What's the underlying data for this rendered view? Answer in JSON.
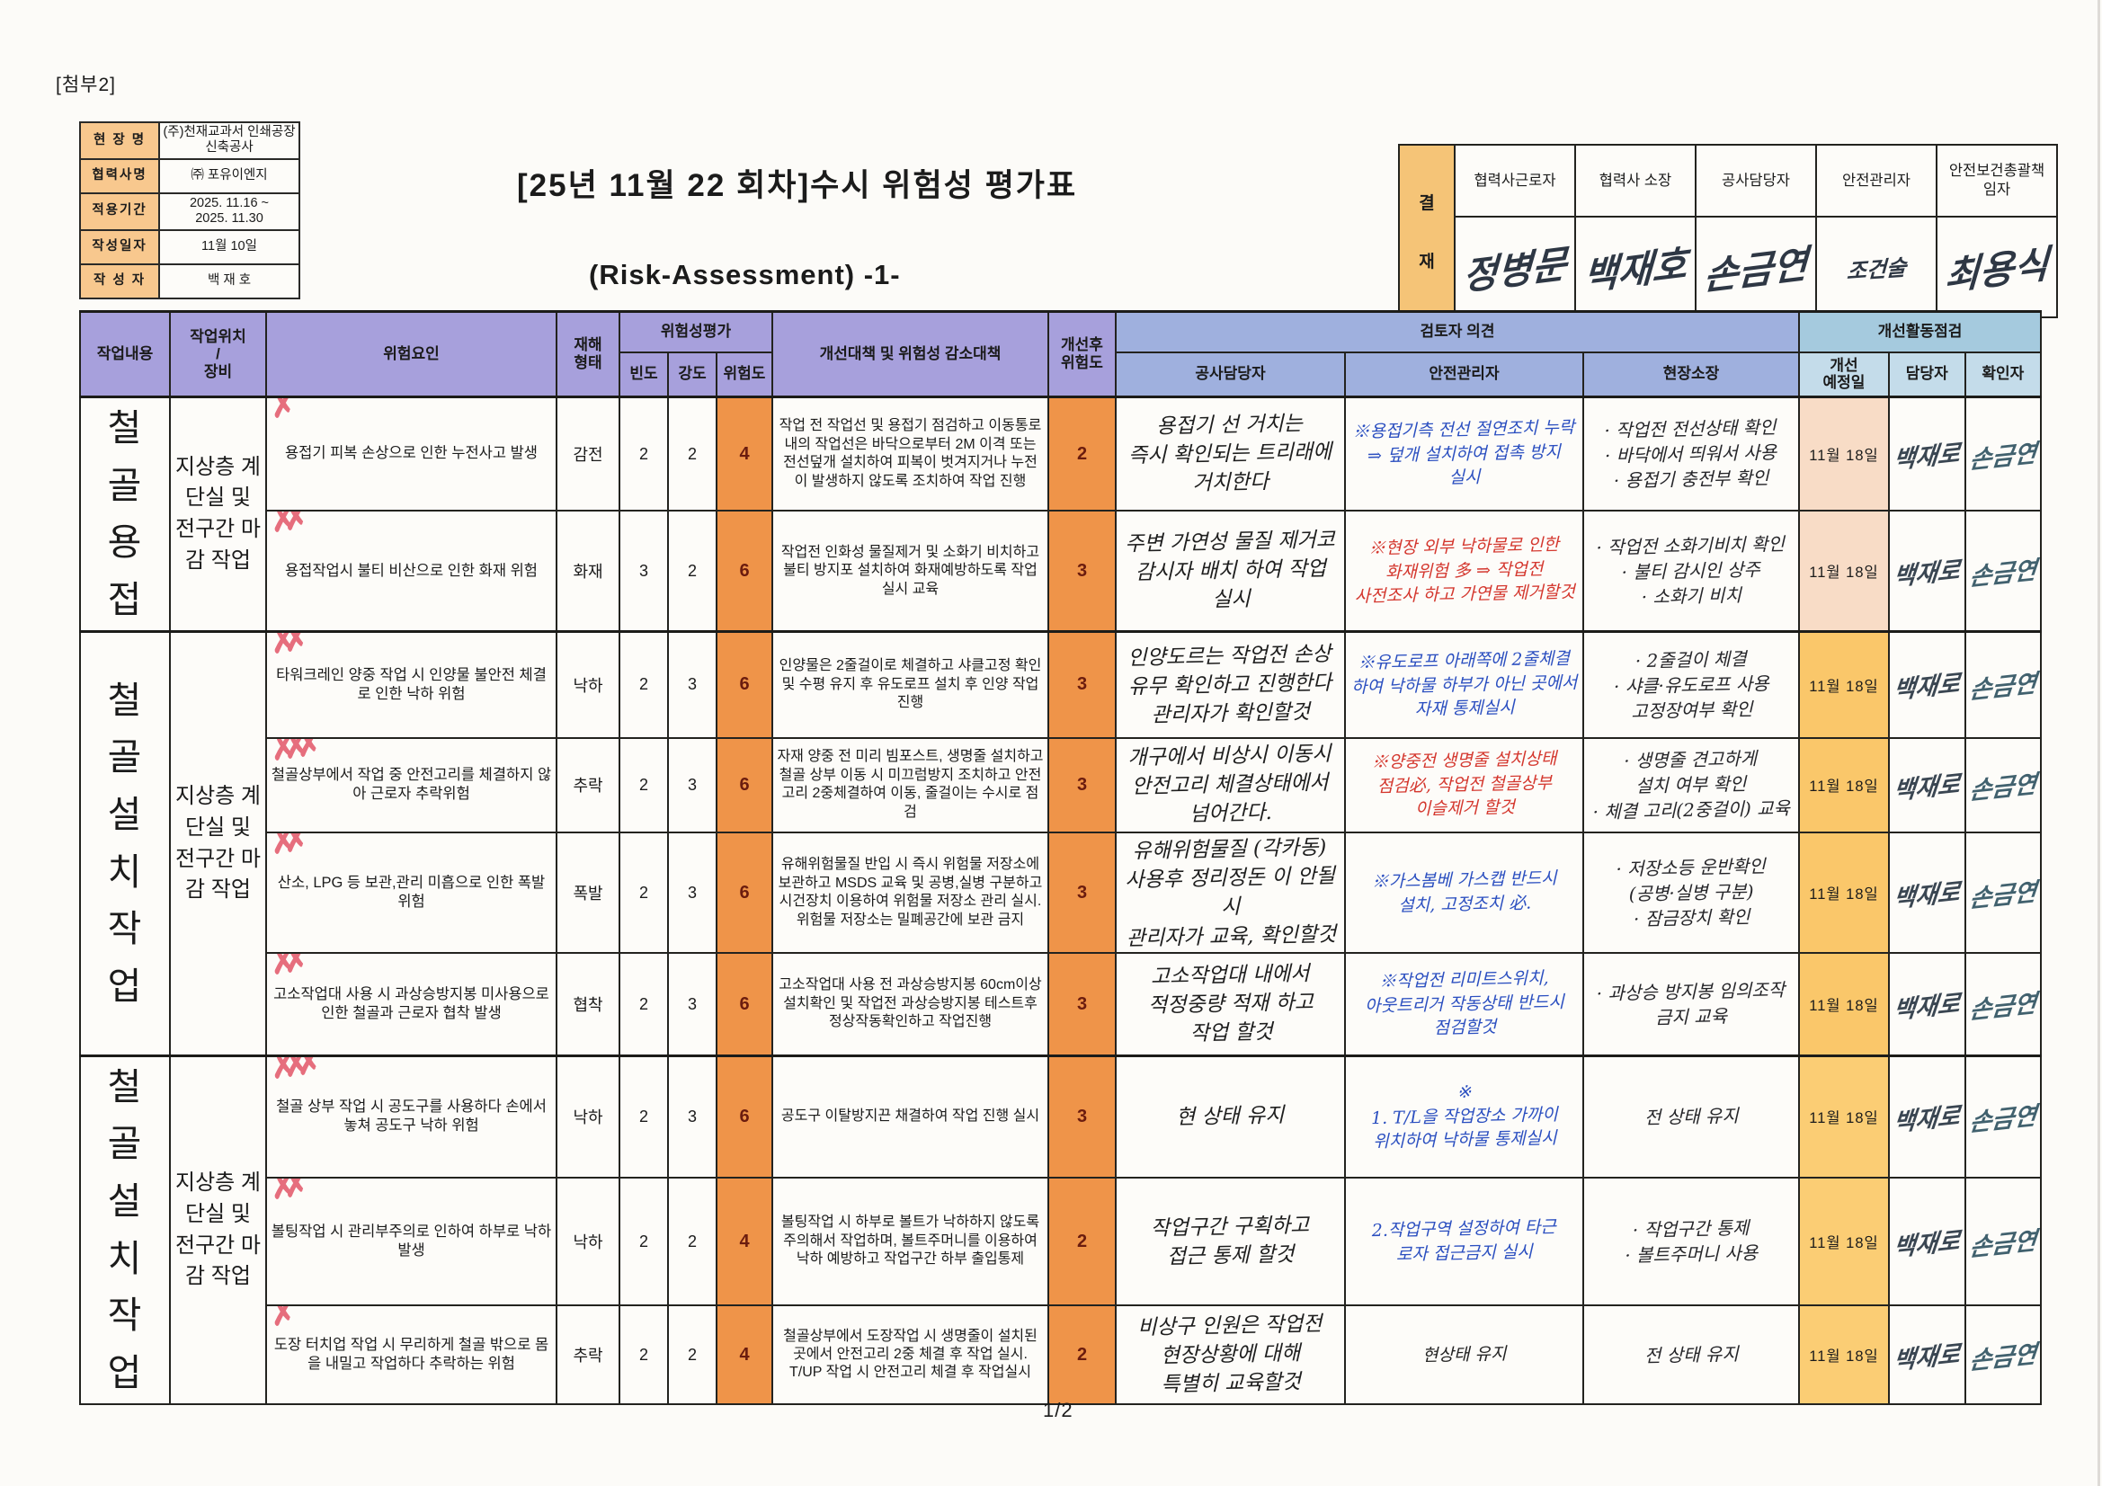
{
  "page": {
    "attachment_label": "[첨부2]",
    "page_number": "1/2"
  },
  "info_table": {
    "rows": [
      {
        "label": "현 장 명",
        "value": "(주)천재교과서 인쇄공장 신축공사"
      },
      {
        "label": "협력사명",
        "value": "㈜ 포유이엔지"
      },
      {
        "label": "적용기간",
        "value": "2025. 11.16 ~\n2025. 11.30"
      },
      {
        "label": "작성일자",
        "value": "11월 10일"
      },
      {
        "label": "작 성 자",
        "value": "백 재 호"
      }
    ]
  },
  "title": {
    "main": "[25년 11월 22 회차]수시 위험성 평가표",
    "sub": "(Risk-Assessment) -1-"
  },
  "approval": {
    "stamp_top": "결",
    "stamp_bottom": "재",
    "columns": [
      {
        "role": "협력사근로자",
        "signature": "정병문"
      },
      {
        "role": "협력사 소장",
        "signature": "백재호"
      },
      {
        "role": "공사담당자",
        "signature": "손금연"
      },
      {
        "role": "안전관리자",
        "signature": "조건술"
      },
      {
        "role": "안전보건총괄책\n임자",
        "signature": "최용식"
      }
    ]
  },
  "table": {
    "headers": {
      "work": "작업내용",
      "location": "작업위치\n/\n장비",
      "hazard": "위험요인",
      "type": "재해\n형태",
      "assessment": "위험성평가",
      "freq": "빈도",
      "sev": "강도",
      "risk": "위험도",
      "measure": "개선대책 및 위험성 감소대책",
      "after": "개선후\n위험도",
      "review": "검토자 의견",
      "gongsa": "공사담당자",
      "anjeon": "안전관리자",
      "sojang": "현장소장",
      "check": "개선활동점검",
      "due": "개선\n예정일",
      "manager": "담당자",
      "checker": "확인자"
    },
    "groups": [
      {
        "label": "철골용접",
        "location": "지상층 계단실 및 전구간 마감 작업",
        "rows": 2
      },
      {
        "label": "철골설치작업",
        "location": "지상층 계단실 및 전구간 마감 작업",
        "rows": 4
      },
      {
        "label": "철골설치작업",
        "location": "지상층 계단실 및 전구간 마감 작업",
        "rows": 3
      }
    ],
    "signatures": {
      "manager": "백재로",
      "checker": "손금연"
    },
    "rows": [
      {
        "hazard": "용접기 피복 손상으로 인한 누전사고 발생",
        "type": "감전",
        "freq": "2",
        "sev": "2",
        "risk": "4",
        "after": "2",
        "measure": "작업 전 작업선 및 용접기 점검하고 이동통로내의 작업선은 바닥으로부터 2M 이격 또는 전선덮개 설치하여 피복이 벗겨지거나 누전이 발생하지 않도록 조치하여 작업 진행",
        "gongsa": "용접기 선 거치는\n즉시 확인되는 트리래에\n거치한다",
        "anjeon": "※용접기측 전선 절연조치 누락\n⇒ 덮개 설치하여 접촉 방지\n실시",
        "ink": "blue",
        "sojang": "· 작업전 전선상태 확인\n· 바닥에서 띄워서 사용\n· 용접기 충전부 확인",
        "due": "11월 18일",
        "marks": 1,
        "due_bg": "#f8dcc6"
      },
      {
        "hazard": "용접작업시 불티 비산으로 인한 화재 위험",
        "type": "화재",
        "freq": "3",
        "sev": "2",
        "risk": "6",
        "after": "3",
        "measure": "작업전 인화성 물질제거 및 소화기 비치하고 불티 방지포 설치하여 화재예방하도록 작업 실시 교육",
        "gongsa": "주변 가연성 물질 제거코\n감시자 배치 하여 작업\n실시",
        "anjeon": "※현장 외부 낙하물로 인한\n화재위험 多 ⇒ 작업전\n사전조사 하고 가연물 제거할것",
        "ink": "red",
        "sojang": "· 작업전 소화기비치 확인\n· 불티 감시인 상주\n· 소화기 비치",
        "due": "11월 18일",
        "marks": 2,
        "due_bg": "#f8dcc6"
      },
      {
        "hazard": "타워크레인 양중 작업 시 인양물 불안전 체결로 인한 낙하 위험",
        "type": "낙하",
        "freq": "2",
        "sev": "3",
        "risk": "6",
        "after": "3",
        "measure": "인양물은 2줄걸이로 체결하고 샤클고정 확인 및 수평 유지 후 유도로프 설치 후 인양 작업 진행",
        "gongsa": "인양도르는 작업전 손상\n유무 확인하고 진행한다\n관리자가 확인할것",
        "anjeon": "※유도로프 아래쪽에 2줄체결\n하여 낙하물 하부가 아닌 곳에서\n자재 통제실시",
        "ink": "blue",
        "sojang": "· 2줄걸이 체결\n· 샤클·유도로프 사용\n  고정장여부 확인",
        "due": "11월 18일",
        "marks": 2,
        "due_bg": "#fac76a"
      },
      {
        "hazard": "철골상부에서 작업 중 안전고리를 체결하지 않아 근로자 추락위험",
        "type": "추락",
        "freq": "2",
        "sev": "3",
        "risk": "6",
        "after": "3",
        "measure": "자재 양중 전 미리 빔포스트, 생명줄 설치하고 철골 상부 이동 시 미끄럼방지 조치하고 안전고리 2중체결하여 이동, 줄걸이는 수시로 점검",
        "gongsa": "개구에서 비상시 이동시\n안전고리 체결상태에서\n넘어간다.",
        "anjeon": "※양중전 생명줄 설치상태\n점검必, 작업전 철골상부\n이슬제거 할것",
        "ink": "red",
        "sojang": "· 생명줄 견고하게\n  설치 여부 확인\n· 체결 고리(2중걸이) 교육",
        "due": "11월 18일",
        "marks": 3,
        "due_bg": "#fac76a"
      },
      {
        "hazard": "산소, LPG 등 보관,관리 미흡으로 인한 폭발 위험",
        "type": "폭발",
        "freq": "2",
        "sev": "3",
        "risk": "6",
        "after": "3",
        "measure": "유해위험물질 반입 시 즉시 위험물 저장소에 보관하고 MSDS 교육 및 공병,실병 구분하고 시건장치 이용하여 위험물 저장소 관리 실시. 위험물 저장소는 밀폐공간에 보관 금지",
        "gongsa": "유해위험물질 (각카동)\n사용후 정리정돈 이 안될시\n관리자가 교육, 확인할것",
        "anjeon": "※가스봄베 가스캡 반드시\n설치, 고정조치 必.",
        "ink": "blue",
        "sojang": "· 저장소등 운반확인\n  (공병·실병 구분)\n· 잠금장치 확인",
        "due": "11월 18일",
        "marks": 2,
        "due_bg": "#fac76a"
      },
      {
        "hazard": "고소작업대 사용 시 과상승방지봉 미사용으로 인한 철골과 근로자 협착 발생",
        "type": "협착",
        "freq": "2",
        "sev": "3",
        "risk": "6",
        "after": "3",
        "measure": "고소작업대 사용 전 과상승방지봉 60cm이상 설치확인 및 작업전 과상승방지봉 테스트후 정상작동확인하고 작업진행",
        "gongsa": "고소작업대 내에서\n적정중량 적재 하고\n작업 할것",
        "anjeon": "※작업전 리미트스위치,\n아웃트리거 작동상태 반드시\n점검할것",
        "ink": "blue",
        "sojang": "· 과상승 방지봉 임의조작\n  금지 교육",
        "due": "11월 18일",
        "marks": 2,
        "due_bg": "#fac76a"
      },
      {
        "hazard": "철골 상부 작업 시 공도구를 사용하다 손에서 놓쳐 공도구 낙하 위험",
        "type": "낙하",
        "freq": "2",
        "sev": "3",
        "risk": "6",
        "after": "3",
        "measure": "공도구 이탈방지끈 채결하여 작업 진행 실시",
        "gongsa": "현 상태 유지",
        "anjeon": "※\n1. T/L을 작업장소 가까이\n위치하여 낙하물 통제실시",
        "ink": "blue",
        "sojang": "전 상태 유지",
        "due": "11월 18일",
        "marks": 3,
        "due_bg": "#fbcd74"
      },
      {
        "hazard": "볼팅작업 시 관리부주의로 인하여 하부로 낙하 발생",
        "type": "낙하",
        "freq": "2",
        "sev": "2",
        "risk": "4",
        "after": "2",
        "measure": "볼팅작업 시 하부로 볼트가 낙하하지 않도록 주의해서 작업하며, 볼트주머니를 이용하여 낙하 예방하고 작업구간 하부 출입통제",
        "gongsa": "작업구간 구획하고\n접근 통제 할것",
        "anjeon": "2.작업구역 설정하여 타근\n로자 접근금지 실시",
        "ink": "blue",
        "sojang": "· 작업구간 통제\n· 볼트주머니 사용",
        "due": "11월 18일",
        "marks": 2,
        "due_bg": "#fbcd74"
      },
      {
        "hazard": "도장 터치업 작업 시 무리하게 철골 밖으로 몸을 내밀고 작업하다 추락하는 위험",
        "type": "추락",
        "freq": "2",
        "sev": "2",
        "risk": "4",
        "after": "2",
        "measure": "철골상부에서 도장작업 시 생명줄이 설치된 곳에서 안전고리 2중 체결 후 작업 실시. T/UP 작업 시 안전고리 체결 후 작업실시",
        "gongsa": "비상구 인원은 작업전\n현장상황에 대해\n특별히 교육할것",
        "anjeon": "현상태 유지",
        "ink": "black",
        "sojang": "전 상태 유지",
        "due": "11월 18일",
        "marks": 1,
        "due_bg": "#fbcd74"
      }
    ]
  },
  "colors": {
    "header_purple": "#a7a0dc",
    "header_blue": "#9fb0de",
    "header_cyan": "#a5cade",
    "header_pale_blue": "#c4dcea",
    "risk_orange": "#ef9449",
    "label_orange": "#f8c88e",
    "due_pink": "#f8dcc6",
    "due_orange": "#fac76a",
    "ink_blue": "#2b4fc0",
    "ink_red": "#d4372e"
  }
}
